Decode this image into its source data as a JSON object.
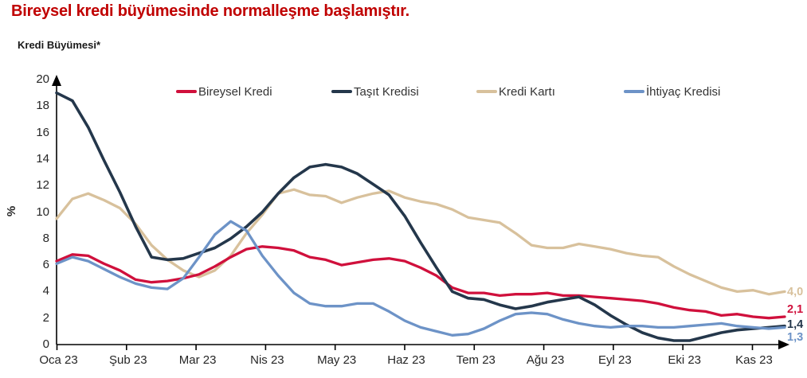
{
  "title": "Bireysel kredi büyümesinde normalleşme başlamıştır.",
  "title_color": "#c00000",
  "chart_label": "Kredi Büyümesi*",
  "chart_data": {
    "type": "line",
    "title": "Kredi Büyümesi*",
    "xlabel": "",
    "ylabel": "%",
    "ylim": [
      0,
      20
    ],
    "ytick_step": 2,
    "y_tick_labels": [
      "0",
      "2",
      "4",
      "6",
      "8",
      "10",
      "12",
      "14",
      "16",
      "18",
      "20"
    ],
    "x_tick_labels": [
      "Oca 23",
      "Şub 23",
      "Mar 23",
      "Nis 23",
      "May 23",
      "Haz 23",
      "Tem 23",
      "Ağu 23",
      "Eyl 23",
      "Eki 23",
      "Kas 23"
    ],
    "x_unit": "weekly observations, Oca 23 – Kas 23",
    "grid": false,
    "legend_position": "top",
    "axis_color": "#000000",
    "series": [
      {
        "name": "Bireysel Kredi",
        "color": "#d0103c",
        "end_label": "2,1",
        "end_value": 2.1,
        "values": [
          6.3,
          6.8,
          6.7,
          6.1,
          5.6,
          4.9,
          4.7,
          4.8,
          5.0,
          5.3,
          5.9,
          6.6,
          7.2,
          7.4,
          7.3,
          7.1,
          6.6,
          6.4,
          6.0,
          6.2,
          6.4,
          6.5,
          6.3,
          5.8,
          5.2,
          4.3,
          3.9,
          3.9,
          3.7,
          3.8,
          3.8,
          3.9,
          3.7,
          3.7,
          3.6,
          3.5,
          3.4,
          3.3,
          3.1,
          2.8,
          2.6,
          2.5,
          2.2,
          2.3,
          2.1,
          2.0,
          2.1
        ]
      },
      {
        "name": "Taşıt Kredisi",
        "color": "#24374b",
        "end_label": "1,4",
        "end_value": 1.4,
        "values": [
          19.0,
          18.4,
          16.4,
          13.9,
          11.5,
          8.9,
          6.6,
          6.4,
          6.5,
          6.9,
          7.3,
          8.0,
          8.9,
          10.0,
          11.4,
          12.6,
          13.4,
          13.6,
          13.4,
          12.9,
          12.1,
          11.3,
          9.7,
          7.7,
          5.8,
          4.0,
          3.5,
          3.4,
          3.0,
          2.7,
          2.9,
          3.2,
          3.4,
          3.6,
          3.0,
          2.2,
          1.5,
          0.9,
          0.5,
          0.3,
          0.3,
          0.6,
          0.9,
          1.1,
          1.2,
          1.3,
          1.4
        ]
      },
      {
        "name": "Kredi Kartı",
        "color": "#d8c19c",
        "end_label": "4,0",
        "end_value": 4.0,
        "values": [
          9.5,
          11.0,
          11.4,
          10.9,
          10.3,
          9.1,
          7.5,
          6.4,
          5.6,
          5.1,
          5.6,
          6.7,
          8.4,
          9.8,
          11.4,
          11.7,
          11.3,
          11.2,
          10.7,
          11.1,
          11.4,
          11.6,
          11.1,
          10.8,
          10.6,
          10.2,
          9.6,
          9.4,
          9.2,
          8.4,
          7.5,
          7.3,
          7.3,
          7.6,
          7.4,
          7.2,
          6.9,
          6.7,
          6.6,
          5.9,
          5.3,
          4.8,
          4.3,
          4.0,
          4.1,
          3.8,
          4.0
        ]
      },
      {
        "name": "İhtiyaç Kredisi",
        "color": "#6d93c7",
        "end_label": "1,3",
        "end_value": 1.3,
        "values": [
          6.1,
          6.6,
          6.3,
          5.7,
          5.1,
          4.6,
          4.3,
          4.2,
          5.0,
          6.6,
          8.3,
          9.3,
          8.6,
          6.7,
          5.2,
          3.9,
          3.1,
          2.9,
          2.9,
          3.1,
          3.1,
          2.5,
          1.8,
          1.3,
          1.0,
          0.7,
          0.8,
          1.2,
          1.8,
          2.3,
          2.4,
          2.3,
          1.9,
          1.6,
          1.4,
          1.3,
          1.4,
          1.4,
          1.3,
          1.3,
          1.4,
          1.5,
          1.6,
          1.4,
          1.3,
          1.2,
          1.3
        ]
      }
    ]
  }
}
